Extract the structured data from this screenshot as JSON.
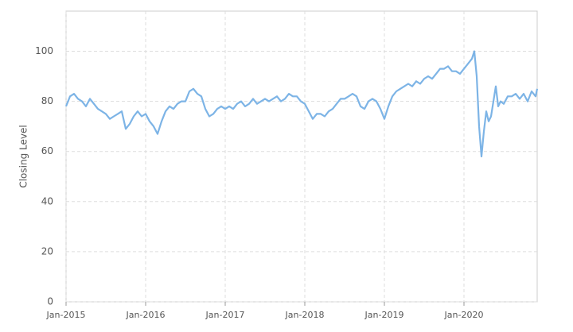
{
  "chart_data": {
    "type": "line",
    "y_label": "Closing Level",
    "x": [
      2015.0,
      2015.05,
      2015.1,
      2015.15,
      2015.2,
      2015.25,
      2015.3,
      2015.35,
      2015.4,
      2015.45,
      2015.5,
      2015.55,
      2015.6,
      2015.65,
      2015.7,
      2015.75,
      2015.8,
      2015.85,
      2015.9,
      2015.95,
      2016.0,
      2016.05,
      2016.1,
      2016.15,
      2016.2,
      2016.25,
      2016.3,
      2016.35,
      2016.4,
      2016.45,
      2016.5,
      2016.55,
      2016.6,
      2016.65,
      2016.7,
      2016.75,
      2016.8,
      2016.85,
      2016.9,
      2016.95,
      2017.0,
      2017.05,
      2017.1,
      2017.15,
      2017.2,
      2017.25,
      2017.3,
      2017.35,
      2017.4,
      2017.45,
      2017.5,
      2017.55,
      2017.6,
      2017.65,
      2017.7,
      2017.75,
      2017.8,
      2017.85,
      2017.9,
      2017.95,
      2018.0,
      2018.05,
      2018.1,
      2018.15,
      2018.2,
      2018.25,
      2018.3,
      2018.35,
      2018.4,
      2018.45,
      2018.5,
      2018.55,
      2018.6,
      2018.65,
      2018.7,
      2018.75,
      2018.8,
      2018.85,
      2018.9,
      2018.95,
      2019.0,
      2019.05,
      2019.1,
      2019.15,
      2019.2,
      2019.25,
      2019.3,
      2019.35,
      2019.4,
      2019.45,
      2019.5,
      2019.55,
      2019.6,
      2019.65,
      2019.7,
      2019.75,
      2019.8,
      2019.85,
      2019.9,
      2019.95,
      2020.0,
      2020.05,
      2020.1,
      2020.13,
      2020.16,
      2020.19,
      2020.22,
      2020.25,
      2020.28,
      2020.31,
      2020.34,
      2020.37,
      2020.4,
      2020.43,
      2020.46,
      2020.5,
      2020.55,
      2020.6,
      2020.65,
      2020.7,
      2020.75,
      2020.8,
      2020.85,
      2020.9,
      2020.92
    ],
    "series": [
      {
        "color": "#7db4e6",
        "values": [
          78,
          82,
          83,
          81,
          80,
          78,
          81,
          79,
          77,
          76,
          75,
          73,
          74,
          75,
          76,
          69,
          71,
          74,
          76,
          74,
          75,
          72,
          70,
          67,
          72,
          76,
          78,
          77,
          79,
          80,
          80,
          84,
          85,
          83,
          82,
          77,
          74,
          75,
          77,
          78,
          77,
          78,
          77,
          79,
          80,
          78,
          79,
          81,
          79,
          80,
          81,
          80,
          81,
          82,
          80,
          81,
          83,
          82,
          82,
          80,
          79,
          76,
          73,
          75,
          75,
          74,
          76,
          77,
          79,
          81,
          81,
          82,
          83,
          82,
          78,
          77,
          80,
          81,
          80,
          77,
          73,
          78,
          82,
          84,
          85,
          86,
          87,
          86,
          88,
          87,
          89,
          90,
          89,
          91,
          93,
          93,
          94,
          92,
          92,
          91,
          93,
          95,
          97,
          100,
          90,
          70,
          58,
          68,
          76,
          72,
          74,
          80,
          86,
          78,
          80,
          79,
          82,
          82,
          83,
          81,
          83,
          80,
          84,
          82,
          85
        ]
      }
    ],
    "xlim": [
      2015,
      2020.92
    ],
    "xticks": [
      {
        "value": 2015,
        "label": "Jan-2015"
      },
      {
        "value": 2016,
        "label": "Jan-2016"
      },
      {
        "value": 2017,
        "label": "Jan-2017"
      },
      {
        "value": 2018,
        "label": "Jan-2018"
      },
      {
        "value": 2019,
        "label": "Jan-2019"
      },
      {
        "value": 2020,
        "label": "Jan-2020"
      }
    ],
    "ylim": [
      0,
      116
    ],
    "yticks": [
      0,
      20,
      40,
      60,
      80,
      100
    ],
    "grid": true
  }
}
